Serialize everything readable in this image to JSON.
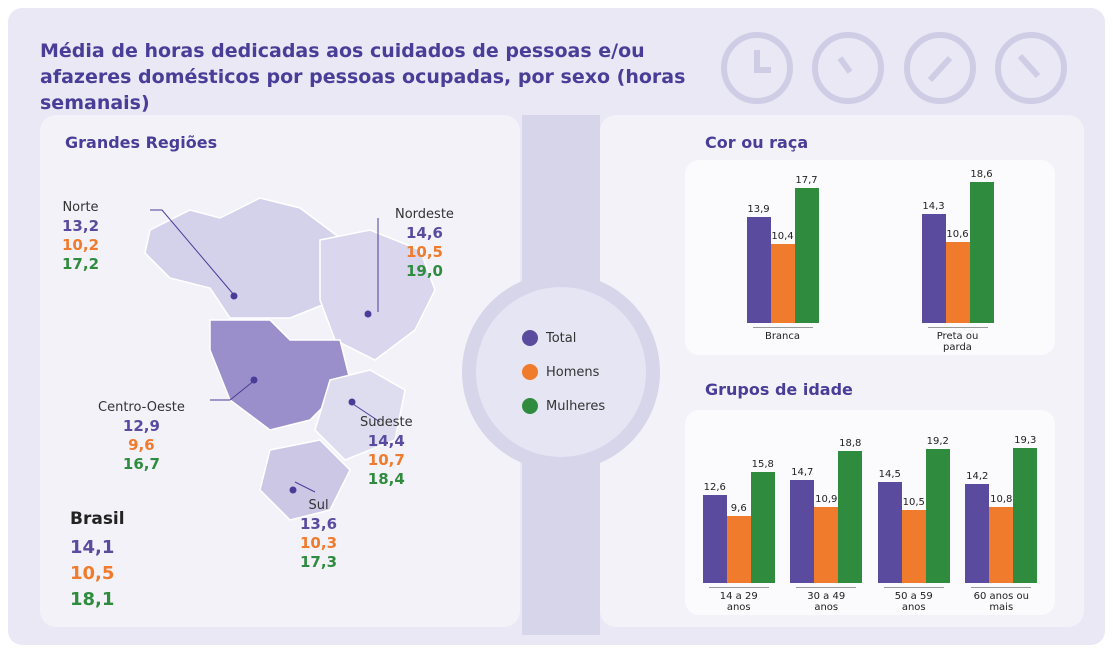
{
  "title": "Média de horas dedicadas aos cuidados de pessoas e/ou afazeres domésticos por pessoas ocupadas, por sexo (horas semanais)",
  "regions": {
    "title": "Grandes Regiões",
    "items": [
      {
        "name": "Norte",
        "values": [
          "13,2",
          "10,2",
          "17,2"
        ]
      },
      {
        "name": "Nordeste",
        "values": [
          "14,6",
          "10,5",
          "19,0"
        ]
      },
      {
        "name": "Centro-Oeste",
        "values": [
          "12,9",
          "9,6",
          "16,7"
        ]
      },
      {
        "name": "Sudeste",
        "values": [
          "14,4",
          "10,7",
          "18,4"
        ]
      },
      {
        "name": "Sul",
        "values": [
          "13,6",
          "10,3",
          "17,3"
        ]
      },
      {
        "name": "Brasil",
        "values": [
          "14,1",
          "10,5",
          "18,1"
        ]
      }
    ]
  },
  "chart_data": [
    {
      "type": "bar",
      "title": "Cor ou raça",
      "categories": [
        "Branca",
        "Preta ou parda"
      ],
      "series": [
        {
          "name": "Total",
          "color": "#5b4b9f",
          "values": [
            13.9,
            14.3
          ],
          "value_labels": [
            "13,9",
            "14,3"
          ]
        },
        {
          "name": "Homens",
          "color": "#f07b2c",
          "values": [
            10.4,
            10.6
          ],
          "value_labels": [
            "10,4",
            "10,6"
          ]
        },
        {
          "name": "Mulheres",
          "color": "#2f8c3f",
          "values": [
            17.7,
            18.6
          ],
          "value_labels": [
            "17,7",
            "18,6"
          ]
        }
      ]
    },
    {
      "type": "bar",
      "title": "Grupos de idade",
      "categories": [
        "14 a 29 anos",
        "30 a 49 anos",
        "50 a 59 anos",
        "60 anos ou mais"
      ],
      "series": [
        {
          "name": "Total",
          "color": "#5b4b9f",
          "values": [
            12.6,
            14.7,
            14.5,
            14.2
          ],
          "value_labels": [
            "12,6",
            "14,7",
            "14,5",
            "14,2"
          ]
        },
        {
          "name": "Homens",
          "color": "#f07b2c",
          "values": [
            9.6,
            10.9,
            10.5,
            10.8
          ],
          "value_labels": [
            "9,6",
            "10,9",
            "10,5",
            "10,8"
          ]
        },
        {
          "name": "Mulheres",
          "color": "#2f8c3f",
          "values": [
            15.8,
            18.8,
            19.2,
            19.3
          ],
          "value_labels": [
            "15,8",
            "18,8",
            "19,2",
            "19,3"
          ]
        }
      ]
    }
  ]
}
